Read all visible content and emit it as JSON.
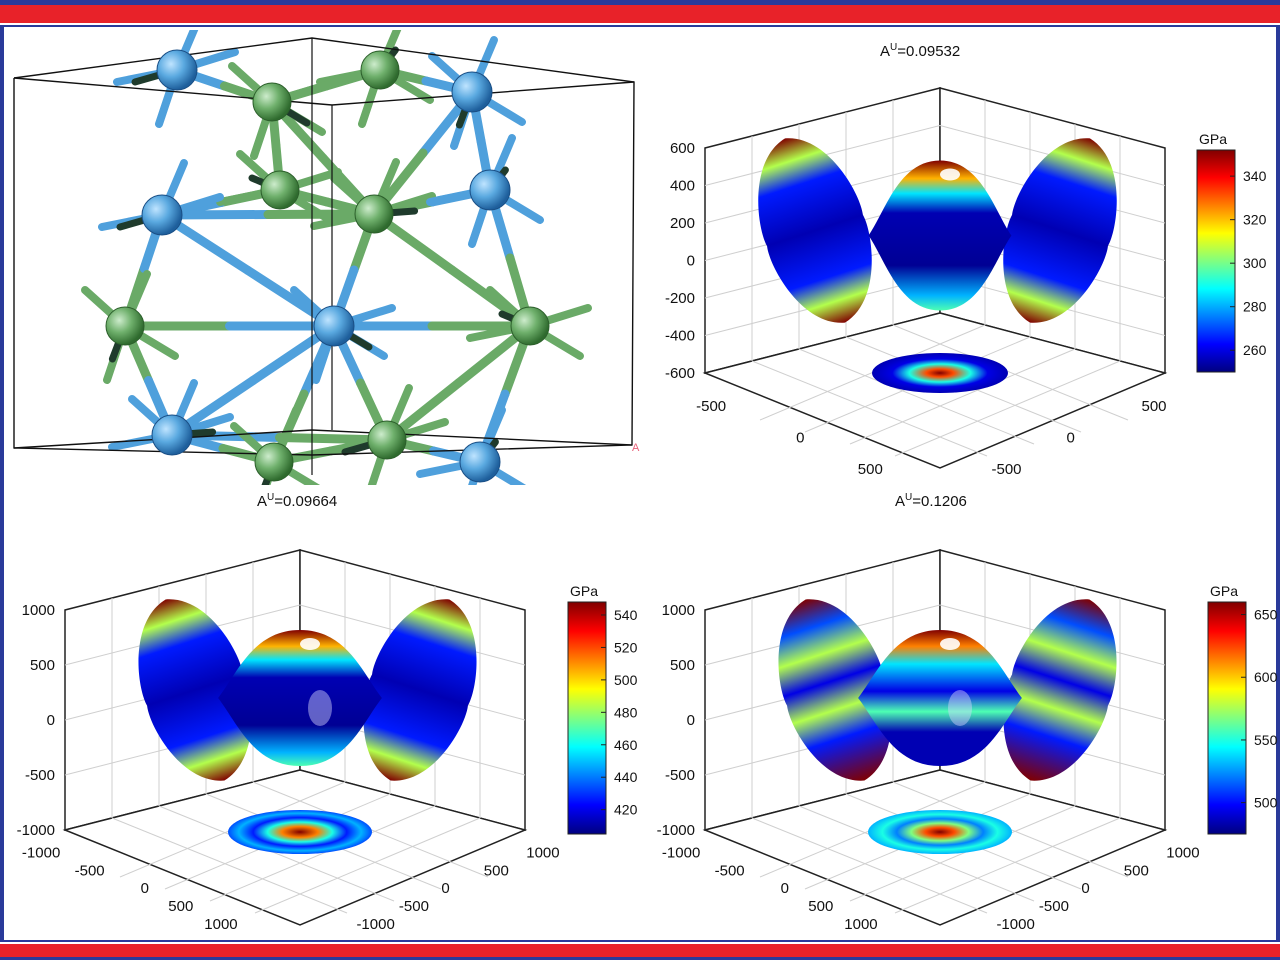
{
  "chart_data": [
    {
      "type": "crystal-structure",
      "legend": [
        "",
        "A"
      ]
    },
    {
      "type": "3d-surface",
      "title_prefix": "A",
      "title_sup": "U",
      "title_value": "=0.09532",
      "z_ticks": [
        "600",
        "400",
        "200",
        "0",
        "-200",
        "-400",
        "-600"
      ],
      "x_ticks": [
        "-500",
        "0",
        "500"
      ],
      "y_ticks": [
        "500",
        "0",
        "-500"
      ],
      "colorbar_label": "GPa",
      "colorbar_ticks": [
        "340",
        "320",
        "300",
        "280",
        "260"
      ],
      "colorbar_range": [
        250,
        352
      ],
      "colormap": "jet"
    },
    {
      "type": "3d-surface",
      "title_prefix": "A",
      "title_sup": "U",
      "title_value": "=0.09664",
      "z_ticks": [
        "1000",
        "500",
        "0",
        "-500",
        "-1000"
      ],
      "x_ticks": [
        "-1000",
        "-500",
        "0",
        "500",
        "1000"
      ],
      "y_ticks": [
        "1000",
        "500",
        "0",
        "-500",
        "-1000"
      ],
      "colorbar_label": "GPa",
      "colorbar_ticks": [
        "540",
        "520",
        "500",
        "480",
        "460",
        "440",
        "420"
      ],
      "colorbar_range": [
        405,
        548
      ],
      "colormap": "jet"
    },
    {
      "type": "3d-surface",
      "title_prefix": "A",
      "title_sup": "U",
      "title_value": "=0.1206",
      "z_ticks": [
        "1000",
        "500",
        "0",
        "-500",
        "-1000"
      ],
      "x_ticks": [
        "-1000",
        "-500",
        "0",
        "500",
        "1000"
      ],
      "y_ticks": [
        "1000",
        "500",
        "0",
        "-500",
        "-1000"
      ],
      "colorbar_label": "GPa",
      "colorbar_ticks": [
        "650",
        "600",
        "550",
        "500"
      ],
      "colorbar_range": [
        475,
        660
      ],
      "colormap": "jet"
    }
  ]
}
